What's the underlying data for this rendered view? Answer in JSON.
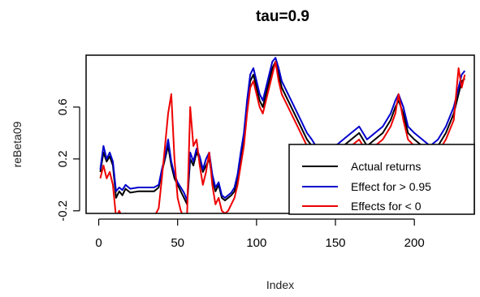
{
  "chart_data": {
    "type": "line",
    "title": "tau=0.9",
    "xlabel": "Index",
    "ylabel": "reBeta09",
    "xlim": [
      -8,
      238
    ],
    "ylim": [
      -0.22,
      1.0
    ],
    "xticks": [
      0,
      50,
      100,
      150,
      200
    ],
    "yticks": [
      -0.2,
      0.2,
      0.6
    ],
    "ytick_labels": [
      "-0.2",
      "0.2",
      "0.6"
    ],
    "legend": {
      "placement": "bottom-right",
      "entries": [
        {
          "label": "Actual returns",
          "color": "#000000"
        },
        {
          "label": "Effect for > 0.95",
          "color": "#0000cc"
        },
        {
          "label": "Effects for < 0",
          "color": "#ee0000"
        }
      ]
    },
    "series": [
      {
        "name": "Actual returns",
        "color": "#000000",
        "x": [
          1,
          3,
          5,
          7,
          9,
          11,
          13,
          15,
          17,
          20,
          25,
          30,
          35,
          38,
          40,
          42,
          44,
          46,
          48,
          50,
          52,
          54,
          56,
          58,
          60,
          62,
          64,
          66,
          68,
          70,
          72,
          74,
          76,
          78,
          80,
          82,
          84,
          86,
          88,
          90,
          92,
          94,
          96,
          98,
          100,
          102,
          104,
          106,
          108,
          110,
          112,
          114,
          116,
          118,
          120,
          122,
          124,
          126,
          128,
          130,
          132,
          135,
          140,
          145,
          150,
          155,
          160,
          165,
          170,
          175,
          180,
          185,
          188,
          190,
          193,
          196,
          200,
          205,
          210,
          215,
          220,
          225,
          228,
          230,
          232
        ],
        "values": [
          0.1,
          0.25,
          0.18,
          0.22,
          0.15,
          -0.1,
          -0.05,
          -0.08,
          -0.03,
          -0.06,
          -0.05,
          -0.05,
          -0.05,
          -0.02,
          0.1,
          0.2,
          0.3,
          0.15,
          0.05,
          0.0,
          -0.05,
          -0.1,
          -0.15,
          0.2,
          0.15,
          0.25,
          0.2,
          0.1,
          0.15,
          0.2,
          0.05,
          -0.05,
          0.0,
          -0.1,
          -0.12,
          -0.1,
          -0.08,
          -0.05,
          0.05,
          0.2,
          0.35,
          0.6,
          0.8,
          0.85,
          0.75,
          0.65,
          0.6,
          0.7,
          0.8,
          0.9,
          0.95,
          0.85,
          0.75,
          0.7,
          0.65,
          0.6,
          0.55,
          0.5,
          0.45,
          0.4,
          0.35,
          0.3,
          0.2,
          0.2,
          0.25,
          0.3,
          0.35,
          0.4,
          0.3,
          0.35,
          0.4,
          0.5,
          0.6,
          0.65,
          0.55,
          0.4,
          0.35,
          0.3,
          0.25,
          0.3,
          0.4,
          0.55,
          0.7,
          0.8,
          0.82
        ]
      },
      {
        "name": "Effect for > 0.95",
        "color": "#0000cc",
        "x": [
          1,
          3,
          5,
          7,
          9,
          11,
          13,
          15,
          17,
          20,
          25,
          30,
          35,
          38,
          40,
          42,
          44,
          46,
          48,
          50,
          52,
          54,
          56,
          58,
          60,
          62,
          64,
          66,
          68,
          70,
          72,
          74,
          76,
          78,
          80,
          82,
          84,
          86,
          88,
          90,
          92,
          94,
          96,
          98,
          100,
          102,
          104,
          106,
          108,
          110,
          112,
          114,
          116,
          118,
          120,
          122,
          124,
          126,
          128,
          130,
          132,
          135,
          140,
          145,
          150,
          155,
          160,
          165,
          170,
          175,
          180,
          185,
          188,
          190,
          193,
          196,
          200,
          205,
          210,
          215,
          220,
          225,
          228,
          230,
          232
        ],
        "values": [
          0.12,
          0.3,
          0.2,
          0.25,
          0.18,
          -0.05,
          -0.02,
          -0.04,
          0.0,
          -0.03,
          -0.02,
          -0.02,
          -0.02,
          0.0,
          0.12,
          0.22,
          0.35,
          0.18,
          0.08,
          0.02,
          -0.02,
          -0.06,
          -0.12,
          0.25,
          0.18,
          0.28,
          0.22,
          0.12,
          0.2,
          0.25,
          0.08,
          -0.02,
          0.02,
          -0.08,
          -0.1,
          -0.08,
          -0.06,
          -0.02,
          0.08,
          0.25,
          0.4,
          0.65,
          0.85,
          0.9,
          0.8,
          0.7,
          0.65,
          0.75,
          0.85,
          0.95,
          0.98,
          0.9,
          0.8,
          0.75,
          0.7,
          0.65,
          0.6,
          0.55,
          0.5,
          0.45,
          0.4,
          0.35,
          0.25,
          0.25,
          0.3,
          0.35,
          0.4,
          0.45,
          0.35,
          0.4,
          0.45,
          0.55,
          0.65,
          0.7,
          0.6,
          0.45,
          0.4,
          0.35,
          0.3,
          0.35,
          0.45,
          0.6,
          0.75,
          0.85,
          0.88
        ]
      },
      {
        "name": "Effects for < 0",
        "color": "#ee0000",
        "x": [
          1,
          3,
          5,
          7,
          9,
          11,
          13,
          15,
          17,
          20,
          25,
          30,
          35,
          38,
          40,
          42,
          44,
          46,
          48,
          50,
          52,
          54,
          56,
          58,
          60,
          62,
          64,
          66,
          68,
          70,
          72,
          74,
          76,
          78,
          80,
          82,
          84,
          86,
          88,
          90,
          92,
          94,
          96,
          98,
          100,
          102,
          104,
          106,
          108,
          110,
          112,
          114,
          116,
          118,
          120,
          122,
          124,
          126,
          128,
          130,
          132,
          135,
          140,
          145,
          150,
          155,
          160,
          165,
          170,
          175,
          180,
          185,
          188,
          190,
          193,
          196,
          200,
          205,
          210,
          215,
          220,
          225,
          228,
          230,
          232
        ],
        "values": [
          0.05,
          0.15,
          0.05,
          0.1,
          0.0,
          -0.25,
          -0.2,
          -0.25,
          -0.22,
          -0.25,
          -0.25,
          -0.25,
          -0.25,
          -0.18,
          0.05,
          0.3,
          0.55,
          0.7,
          0.2,
          -0.1,
          -0.2,
          -0.25,
          -0.22,
          0.6,
          0.3,
          0.35,
          0.15,
          0.0,
          0.1,
          0.25,
          0.0,
          -0.15,
          -0.1,
          -0.2,
          -0.22,
          -0.2,
          -0.15,
          -0.1,
          0.0,
          0.15,
          0.3,
          0.55,
          0.75,
          0.8,
          0.7,
          0.6,
          0.55,
          0.65,
          0.75,
          0.85,
          0.95,
          0.8,
          0.7,
          0.65,
          0.6,
          0.55,
          0.5,
          0.45,
          0.4,
          0.35,
          0.3,
          0.25,
          0.15,
          0.15,
          0.2,
          0.25,
          0.3,
          0.35,
          0.25,
          0.3,
          0.35,
          0.45,
          0.55,
          0.7,
          0.5,
          0.35,
          0.3,
          0.25,
          0.2,
          0.25,
          0.35,
          0.5,
          0.9,
          0.75,
          0.85
        ]
      }
    ]
  }
}
